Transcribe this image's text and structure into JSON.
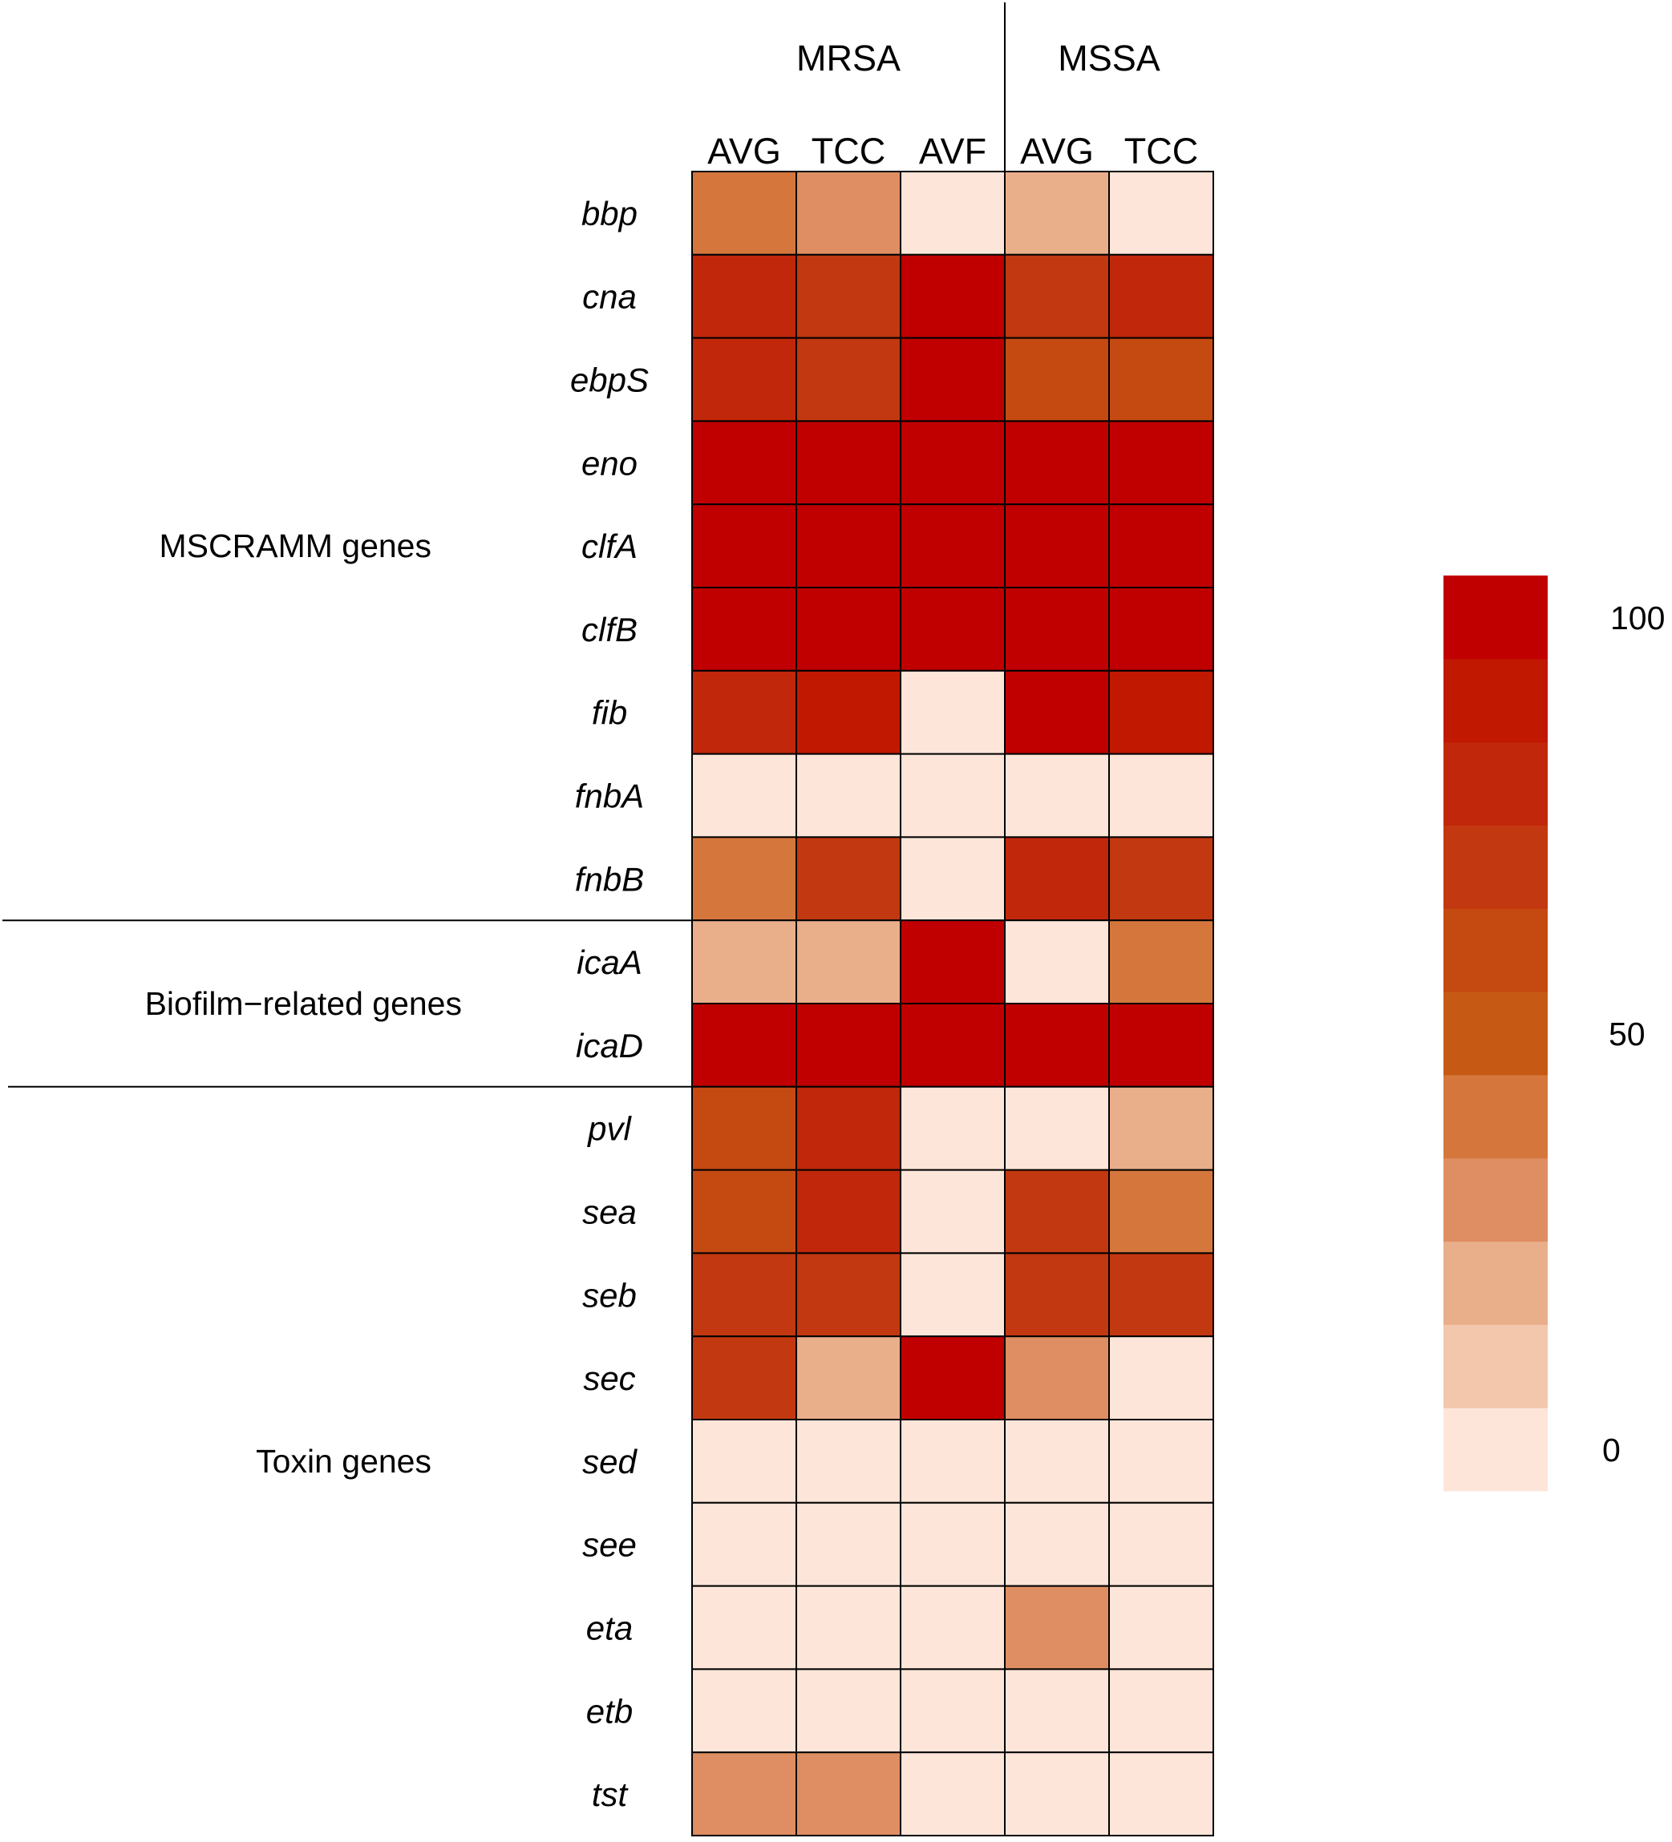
{
  "chart_data": {
    "type": "heatmap",
    "title": "",
    "column_groups": [
      {
        "name": "MRSA",
        "columns": [
          "AVG",
          "TCC",
          "AVF"
        ]
      },
      {
        "name": "MSSA",
        "columns": [
          "AVG",
          "TCC"
        ]
      }
    ],
    "columns": [
      "AVG",
      "TCC",
      "AVF",
      "AVG",
      "TCC"
    ],
    "row_groups": [
      {
        "name": "MSCRAMM genes",
        "rows": [
          "bbp",
          "cna",
          "ebpS",
          "eno",
          "clfA",
          "clfB",
          "fib",
          "fnbA",
          "fnbB"
        ]
      },
      {
        "name": "Biofilm−related genes",
        "rows": [
          "icaA",
          "icaD"
        ]
      },
      {
        "name": "Toxin genes",
        "rows": [
          "pvl",
          "sea",
          "seb",
          "sec",
          "sed",
          "see",
          "eta",
          "etb",
          "tst"
        ]
      }
    ],
    "rows": [
      "bbp",
      "cna",
      "ebpS",
      "eno",
      "clfA",
      "clfB",
      "fib",
      "fnbA",
      "fnbB",
      "icaA",
      "icaD",
      "pvl",
      "sea",
      "seb",
      "sec",
      "sed",
      "see",
      "eta",
      "etb",
      "tst"
    ],
    "values": [
      [
        35,
        30,
        0,
        15,
        0
      ],
      [
        75,
        70,
        100,
        70,
        75
      ],
      [
        75,
        70,
        100,
        60,
        60
      ],
      [
        100,
        100,
        100,
        100,
        100
      ],
      [
        100,
        100,
        100,
        100,
        100
      ],
      [
        100,
        100,
        100,
        100,
        100
      ],
      [
        80,
        85,
        0,
        95,
        85
      ],
      [
        0,
        0,
        0,
        0,
        0
      ],
      [
        35,
        70,
        0,
        75,
        70
      ],
      [
        20,
        15,
        100,
        0,
        40
      ],
      [
        100,
        100,
        100,
        100,
        100
      ],
      [
        60,
        75,
        0,
        0,
        20
      ],
      [
        60,
        75,
        0,
        65,
        40
      ],
      [
        70,
        65,
        0,
        65,
        70
      ],
      [
        70,
        20,
        100,
        25,
        0
      ],
      [
        0,
        0,
        0,
        0,
        0
      ],
      [
        0,
        0,
        0,
        0,
        0
      ],
      [
        0,
        0,
        0,
        30,
        0
      ],
      [
        0,
        0,
        0,
        0,
        0
      ],
      [
        25,
        25,
        0,
        0,
        0
      ]
    ],
    "colorbar": {
      "range": [
        0,
        100
      ],
      "ticks": [
        0,
        50,
        100
      ],
      "tick_labels": [
        "0",
        "50",
        "100"
      ],
      "colors": [
        "#FDE5D9",
        "#F2C7AC",
        "#E9AE8A",
        "#DE8E62",
        "#D5773D",
        "#C65A14",
        "#C54A12",
        "#C23810",
        "#C1270A",
        "#C11802",
        "#C00000"
      ]
    }
  }
}
